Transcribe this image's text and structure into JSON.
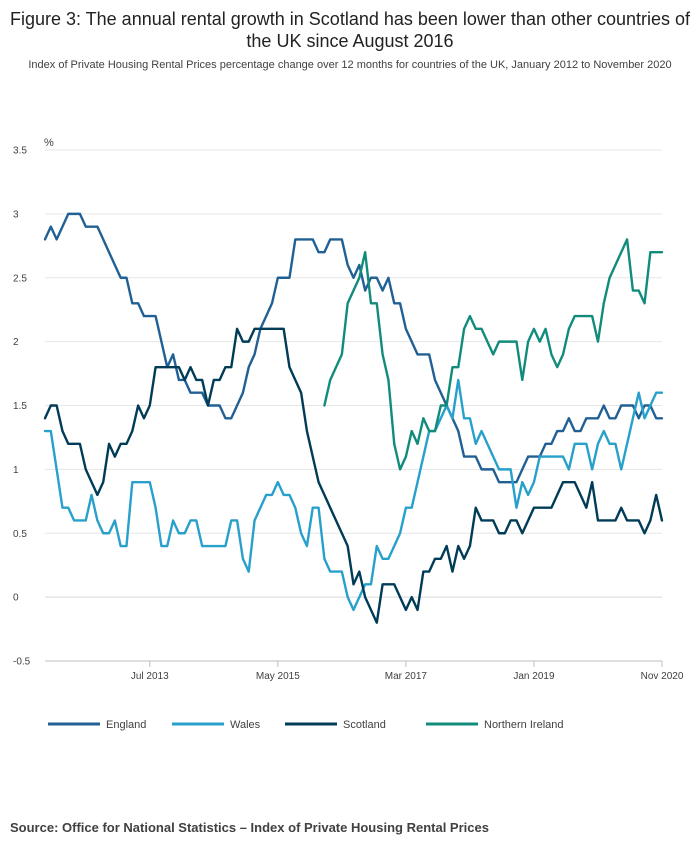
{
  "title": "Figure 3: The annual rental growth in Scotland has been lower than other countries of the UK since August 2016",
  "subtitle": "Index of Private Housing Rental Prices percentage change over 12 months for countries of the UK, January 2012 to November 2020",
  "source": "Source: Office for National Statistics – Index of Private Housing Rental Prices",
  "chart_data": {
    "type": "line",
    "ylabel": "%",
    "ylim": [
      -0.5,
      3.5
    ],
    "yticks": [
      -0.5,
      0,
      0.5,
      1,
      1.5,
      2,
      2.5,
      3,
      3.5
    ],
    "ytick_labels": [
      "-0.5",
      "0",
      "0.5",
      "1",
      "1.5",
      "2",
      "2.5",
      "3",
      "3.5"
    ],
    "x_start": "Jan 2012",
    "x_end": "Nov 2020",
    "xticks": [
      {
        "label": "Jul 2013",
        "month_index": 18
      },
      {
        "label": "May 2015",
        "month_index": 40
      },
      {
        "label": "Mar 2017",
        "month_index": 62
      },
      {
        "label": "Jan 2019",
        "month_index": 84
      },
      {
        "label": "Nov 2020",
        "month_index": 106
      }
    ],
    "grid": true,
    "legend_position": "bottom",
    "series": [
      {
        "name": "England",
        "color": "#206095",
        "start_month_index": 0,
        "values": [
          2.8,
          2.9,
          2.8,
          2.9,
          3.0,
          3.0,
          3.0,
          2.9,
          2.9,
          2.9,
          2.8,
          2.7,
          2.6,
          2.5,
          2.5,
          2.3,
          2.3,
          2.2,
          2.2,
          2.2,
          2.0,
          1.8,
          1.9,
          1.7,
          1.7,
          1.6,
          1.6,
          1.6,
          1.5,
          1.5,
          1.5,
          1.4,
          1.4,
          1.5,
          1.6,
          1.8,
          1.9,
          2.1,
          2.2,
          2.3,
          2.5,
          2.5,
          2.5,
          2.8,
          2.8,
          2.8,
          2.8,
          2.7,
          2.7,
          2.8,
          2.8,
          2.8,
          2.6,
          2.5,
          2.6,
          2.4,
          2.5,
          2.5,
          2.4,
          2.5,
          2.3,
          2.3,
          2.1,
          2.0,
          1.9,
          1.9,
          1.9,
          1.7,
          1.6,
          1.5,
          1.4,
          1.3,
          1.1,
          1.1,
          1.1,
          1.0,
          1.0,
          1.0,
          0.9,
          0.9,
          0.9,
          0.9,
          1.0,
          1.1,
          1.1,
          1.1,
          1.2,
          1.2,
          1.3,
          1.3,
          1.4,
          1.3,
          1.3,
          1.4,
          1.4,
          1.4,
          1.5,
          1.4,
          1.4,
          1.5,
          1.5,
          1.5,
          1.4,
          1.5,
          1.5,
          1.4,
          1.4
        ]
      },
      {
        "name": "Wales",
        "color": "#27a0cc",
        "start_month_index": 0,
        "values": [
          1.3,
          1.3,
          1.0,
          0.7,
          0.7,
          0.6,
          0.6,
          0.6,
          0.8,
          0.6,
          0.5,
          0.5,
          0.6,
          0.4,
          0.4,
          0.9,
          0.9,
          0.9,
          0.9,
          0.7,
          0.4,
          0.4,
          0.6,
          0.5,
          0.5,
          0.6,
          0.6,
          0.4,
          0.4,
          0.4,
          0.4,
          0.4,
          0.6,
          0.6,
          0.3,
          0.2,
          0.6,
          0.7,
          0.8,
          0.8,
          0.9,
          0.8,
          0.8,
          0.7,
          0.5,
          0.4,
          0.7,
          0.7,
          0.3,
          0.2,
          0.2,
          0.2,
          0.0,
          -0.1,
          0.0,
          0.1,
          0.1,
          0.4,
          0.3,
          0.3,
          0.4,
          0.5,
          0.7,
          0.7,
          0.9,
          1.1,
          1.3,
          1.3,
          1.4,
          1.5,
          1.4,
          1.7,
          1.4,
          1.4,
          1.2,
          1.3,
          1.2,
          1.1,
          1.0,
          1.0,
          1.0,
          0.7,
          0.9,
          0.8,
          0.9,
          1.1,
          1.1,
          1.1,
          1.1,
          1.1,
          1.0,
          1.2,
          1.2,
          1.2,
          1.0,
          1.2,
          1.3,
          1.2,
          1.2,
          1.0,
          1.2,
          1.4,
          1.6,
          1.4,
          1.5,
          1.6,
          1.6
        ]
      },
      {
        "name": "Scotland",
        "color": "#003c57",
        "start_month_index": 0,
        "values": [
          1.4,
          1.5,
          1.5,
          1.3,
          1.2,
          1.2,
          1.2,
          1.0,
          0.9,
          0.8,
          0.9,
          1.2,
          1.1,
          1.2,
          1.2,
          1.3,
          1.5,
          1.4,
          1.5,
          1.8,
          1.8,
          1.8,
          1.8,
          1.8,
          1.7,
          1.8,
          1.7,
          1.7,
          1.5,
          1.7,
          1.7,
          1.8,
          1.8,
          2.1,
          2.0,
          2.0,
          2.1,
          2.1,
          2.1,
          2.1,
          2.1,
          2.1,
          1.8,
          1.7,
          1.6,
          1.3,
          1.1,
          0.9,
          0.8,
          0.7,
          0.6,
          0.5,
          0.4,
          0.1,
          0.2,
          0.0,
          -0.1,
          -0.2,
          0.1,
          0.1,
          0.1,
          0.0,
          -0.1,
          0.0,
          -0.1,
          0.2,
          0.2,
          0.3,
          0.3,
          0.4,
          0.2,
          0.4,
          0.3,
          0.4,
          0.7,
          0.6,
          0.6,
          0.6,
          0.5,
          0.5,
          0.6,
          0.6,
          0.5,
          0.6,
          0.7,
          0.7,
          0.7,
          0.7,
          0.8,
          0.9,
          0.9,
          0.9,
          0.8,
          0.7,
          0.9,
          0.6,
          0.6,
          0.6,
          0.6,
          0.7,
          0.6,
          0.6,
          0.6,
          0.5,
          0.6,
          0.8,
          0.6
        ]
      },
      {
        "name": "Northern Ireland",
        "color": "#118c7b",
        "start_month_index": 48,
        "values": [
          1.5,
          1.7,
          1.8,
          1.9,
          2.3,
          2.4,
          2.5,
          2.7,
          2.3,
          2.3,
          1.9,
          1.7,
          1.2,
          1.0,
          1.1,
          1.3,
          1.2,
          1.4,
          1.3,
          1.3,
          1.5,
          1.5,
          1.8,
          1.8,
          2.1,
          2.2,
          2.1,
          2.1,
          2.0,
          1.9,
          2.0,
          2.0,
          2.0,
          2.0,
          1.7,
          2.0,
          2.1,
          2.0,
          2.1,
          1.9,
          1.8,
          1.9,
          2.1,
          2.2,
          2.2,
          2.2,
          2.2,
          2.0,
          2.3,
          2.5,
          2.6,
          2.7,
          2.8,
          2.4,
          2.4,
          2.3,
          2.7,
          2.7,
          2.7
        ]
      }
    ]
  }
}
